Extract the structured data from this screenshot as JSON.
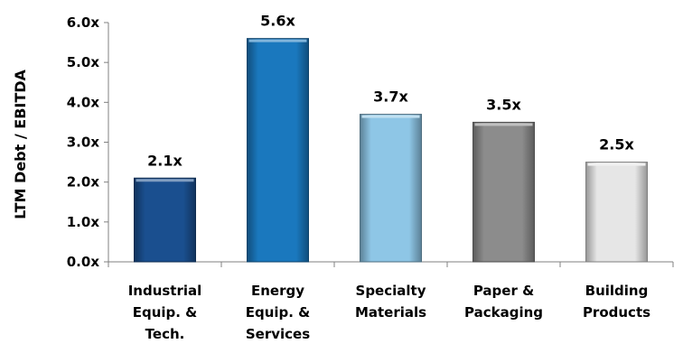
{
  "chart_data": {
    "type": "bar",
    "title": "",
    "xlabel": "",
    "ylabel": "LTM Debt / EBITDA",
    "ylim": [
      0,
      6
    ],
    "yticks": [
      "0.0x",
      "1.0x",
      "2.0x",
      "3.0x",
      "4.0x",
      "5.0x",
      "6.0x"
    ],
    "grid": false,
    "categories": [
      [
        "Industrial",
        "Equip. &",
        "Tech."
      ],
      [
        "Energy",
        "Equip. &",
        "Services"
      ],
      [
        "Specialty",
        "Materials"
      ],
      [
        "Paper &",
        "Packaging"
      ],
      [
        "Building",
        "Products"
      ]
    ],
    "values": [
      2.1,
      5.6,
      3.7,
      3.5,
      2.5
    ],
    "data_labels": [
      "2.1x",
      "5.6x",
      "3.7x",
      "3.5x",
      "2.5x"
    ],
    "colors": [
      "#1a4f8f",
      "#1a78be",
      "#8ec6e6",
      "#8c8c8c",
      "#e6e6e6"
    ]
  }
}
